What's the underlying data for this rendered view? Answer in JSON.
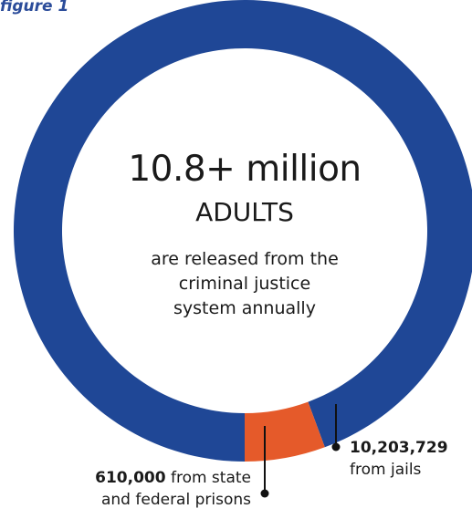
{
  "figure_label": "figure 1",
  "colors": {
    "jails": "#1f4796",
    "prisons": "#e55a2a",
    "text": "#1a1a1a",
    "label": "#2b4c9a"
  },
  "center": {
    "headline": "10.8+ million",
    "subhead": "ADULTS",
    "description_lines": [
      "are released from the",
      "criminal justice",
      "system annually"
    ]
  },
  "chart_data": {
    "type": "pie",
    "style": "donut",
    "slices": [
      {
        "name": "from jails",
        "value": 10203729,
        "value_label": "10,203,729",
        "label": "from jails",
        "color": "#1f4796"
      },
      {
        "name": "from state and federal prisons",
        "value": 610000,
        "value_label": "610,000",
        "label_line1": "from state",
        "label_line2": "and federal prisons",
        "color": "#e55a2a"
      }
    ]
  }
}
